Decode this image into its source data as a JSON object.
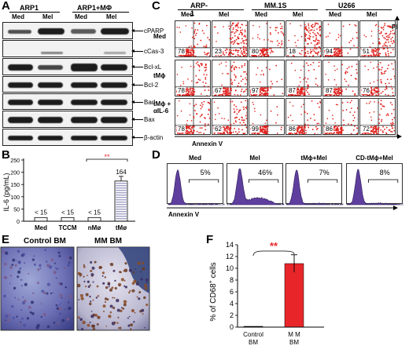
{
  "panels": {
    "A": "A",
    "B": "B",
    "C": "C",
    "D": "D",
    "E": "E",
    "F": "F"
  },
  "panelA": {
    "groups": [
      "ARP1",
      "ARP1+MΦ"
    ],
    "conditions": [
      "Med",
      "Mel",
      "Med",
      "Mel"
    ],
    "blots": [
      {
        "label": "cPARP"
      },
      {
        "label": "cCas-3"
      },
      {
        "label": "Bcl-xL"
      },
      {
        "label": "Bcl-2"
      },
      {
        "label": "Bad"
      },
      {
        "label": "Bax"
      },
      {
        "label": "β-actin"
      }
    ]
  },
  "panelB": {
    "ylabel": "IL-6 (pg/mL)",
    "significance": "**",
    "colors": {
      "significance": "#e8262a",
      "tm_bar": "#5a5a9a"
    },
    "chart_data": {
      "type": "bar",
      "categories": [
        "Med",
        "TCCM",
        "nMø",
        "tMø"
      ],
      "values": [
        15,
        15,
        15,
        164
      ],
      "value_labels": [
        "< 15",
        "< 15",
        "< 15",
        "164"
      ],
      "ylim": [
        0,
        250
      ],
      "yticks": [
        "0",
        "50",
        "100",
        "150",
        "200",
        "250"
      ]
    }
  },
  "panelC": {
    "columns": [
      "ARP-1",
      "MM.1S",
      "U266"
    ],
    "subcolumns": [
      "Med",
      "Mel"
    ],
    "rows": [
      "Med",
      "tMϕ",
      "tMϕ + αIL-6"
    ],
    "xaxis": "Annexin V",
    "yaxis": "PI",
    "percentages": [
      [
        "78",
        "23",
        "80",
        "18",
        "94",
        "51"
      ],
      [
        "78",
        "67",
        "97",
        "87",
        "87",
        "76"
      ],
      [
        "78",
        "62",
        "99",
        "86",
        "86",
        "72"
      ]
    ],
    "colors": {
      "dots": "#e0201c"
    }
  },
  "panelD": {
    "conditions": [
      "Med",
      "Mel",
      "tMϕ+Mel",
      "CD-tMϕ+Mel"
    ],
    "percents": [
      "5%",
      "46%",
      "7%",
      "8%"
    ],
    "xaxis": "Annexin V",
    "colors": {
      "fill": "#5f3f9e"
    }
  },
  "panelE": {
    "titles": [
      "Control BM",
      "MM BM"
    ]
  },
  "panelF": {
    "ylabel": "% of CD68",
    "ylabel_sup": "+",
    "ylabel_suffix": " cells",
    "significance": "**",
    "colors": {
      "bar": "#e8262a",
      "significance": "#e8262a"
    },
    "chart_data": {
      "type": "bar",
      "categories": [
        "Control BM",
        "MM BM"
      ],
      "category_lines": [
        [
          "Control",
          "BM"
        ],
        [
          "M M",
          "BM"
        ]
      ],
      "values": [
        0.1,
        10.8
      ],
      "errors": [
        0,
        1.5
      ],
      "ylim": [
        0,
        14
      ],
      "yticks": [
        "0",
        "2",
        "4",
        "6",
        "8",
        "10",
        "12",
        "14"
      ]
    }
  }
}
